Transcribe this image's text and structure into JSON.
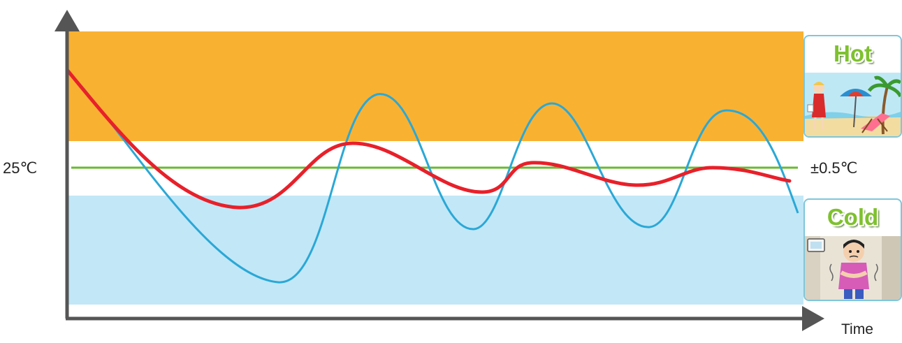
{
  "axes": {
    "x_label": "Time"
  },
  "reference": {
    "label": "25℃",
    "tolerance_label": "±0.5℃"
  },
  "cards": {
    "hot": {
      "title": "Hot",
      "icon": "beach-scene-icon"
    },
    "cold": {
      "title": "Cold",
      "icon": "shivering-person-icon"
    }
  },
  "colors": {
    "hot_zone": "#f9b132",
    "comfort_zone": "#ffffff",
    "cold_zone": "#c2e7f7",
    "reference_line": "#6ab92f",
    "fluctuating_curve": "#2aa8d6",
    "stable_curve": "#e8202a",
    "axis": "#555555",
    "card_title": "#7ec12e"
  }
}
